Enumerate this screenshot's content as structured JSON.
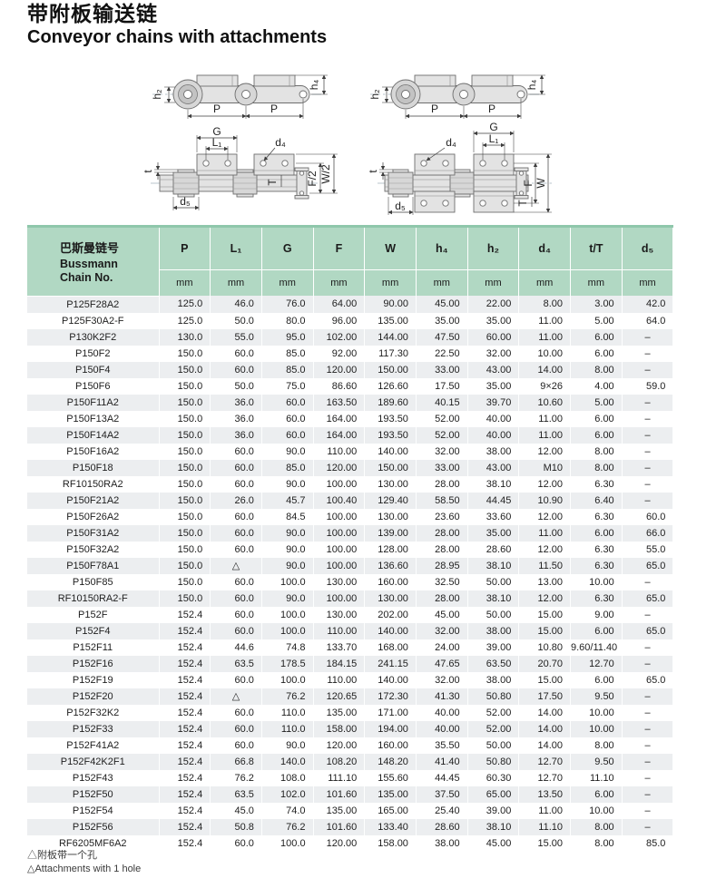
{
  "page": {
    "title_zh": "带附板输送链",
    "title_en": "Conveyor chains with attachments"
  },
  "colors": {
    "header_green": "#b1d8c3",
    "header_top_border": "#8fc7ab",
    "row_stripe_gray": "#eceef0"
  },
  "drawings": {
    "dims": {
      "P": "P",
      "G": "G",
      "T": "T",
      "t": "t",
      "h2": "h₂",
      "h4": "h₄",
      "L1": "L₁",
      "d4": "d₄",
      "d5": "d₅",
      "F": "F",
      "W": "W",
      "F2": "F/2",
      "W2": "W/2"
    }
  },
  "table": {
    "header": {
      "chain_zh": "巴斯曼链号",
      "chain_en1": "Bussmann",
      "chain_en2": "Chain No.",
      "columns": [
        "P",
        "L₁",
        "G",
        "F",
        "W",
        "h₄",
        "h₂",
        "d₄",
        "t/T",
        "d₅"
      ],
      "unit": "mm"
    },
    "rows": [
      [
        "P125F28A2",
        "125.0",
        "46.0",
        "76.0",
        "64.00",
        "90.00",
        "45.00",
        "22.00",
        "8.00",
        "3.00",
        "42.0"
      ],
      [
        "P125F30A2-F",
        "125.0",
        "50.0",
        "80.0",
        "96.00",
        "135.00",
        "35.00",
        "35.00",
        "11.00",
        "5.00",
        "64.0"
      ],
      [
        "P130K2F2",
        "130.0",
        "55.0",
        "95.0",
        "102.00",
        "144.00",
        "47.50",
        "60.00",
        "11.00",
        "6.00",
        "–"
      ],
      [
        "P150F2",
        "150.0",
        "60.0",
        "85.0",
        "92.00",
        "117.30",
        "22.50",
        "32.00",
        "10.00",
        "6.00",
        "–"
      ],
      [
        "P150F4",
        "150.0",
        "60.0",
        "85.0",
        "120.00",
        "150.00",
        "33.00",
        "43.00",
        "14.00",
        "8.00",
        "–"
      ],
      [
        "P150F6",
        "150.0",
        "50.0",
        "75.0",
        "86.60",
        "126.60",
        "17.50",
        "35.00",
        "9×26",
        "4.00",
        "59.0"
      ],
      [
        "P150F11A2",
        "150.0",
        "36.0",
        "60.0",
        "163.50",
        "189.60",
        "40.15",
        "39.70",
        "10.60",
        "5.00",
        "–"
      ],
      [
        "P150F13A2",
        "150.0",
        "36.0",
        "60.0",
        "164.00",
        "193.50",
        "52.00",
        "40.00",
        "11.00",
        "6.00",
        "–"
      ],
      [
        "P150F14A2",
        "150.0",
        "36.0",
        "60.0",
        "164.00",
        "193.50",
        "52.00",
        "40.00",
        "11.00",
        "6.00",
        "–"
      ],
      [
        "P150F16A2",
        "150.0",
        "60.0",
        "90.0",
        "110.00",
        "140.00",
        "32.00",
        "38.00",
        "12.00",
        "8.00",
        "–"
      ],
      [
        "P150F18",
        "150.0",
        "60.0",
        "85.0",
        "120.00",
        "150.00",
        "33.00",
        "43.00",
        "M10",
        "8.00",
        "–"
      ],
      [
        "RF10150RA2",
        "150.0",
        "60.0",
        "90.0",
        "100.00",
        "130.00",
        "28.00",
        "38.10",
        "12.00",
        "6.30",
        "–"
      ],
      [
        "P150F21A2",
        "150.0",
        "26.0",
        "45.7",
        "100.40",
        "129.40",
        "58.50",
        "44.45",
        "10.90",
        "6.40",
        "–"
      ],
      [
        "P150F26A2",
        "150.0",
        "60.0",
        "84.5",
        "100.00",
        "130.00",
        "23.60",
        "33.60",
        "12.00",
        "6.30",
        "60.0"
      ],
      [
        "P150F31A2",
        "150.0",
        "60.0",
        "90.0",
        "100.00",
        "139.00",
        "28.00",
        "35.00",
        "11.00",
        "6.00",
        "66.0"
      ],
      [
        "P150F32A2",
        "150.0",
        "60.0",
        "90.0",
        "100.00",
        "128.00",
        "28.00",
        "28.60",
        "12.00",
        "6.30",
        "55.0"
      ],
      [
        "P150F78A1",
        "150.0",
        "△",
        "90.0",
        "100.00",
        "136.60",
        "28.95",
        "38.10",
        "11.50",
        "6.30",
        "65.0"
      ],
      [
        "P150F85",
        "150.0",
        "60.0",
        "100.0",
        "130.00",
        "160.00",
        "32.50",
        "50.00",
        "13.00",
        "10.00",
        "–"
      ],
      [
        "RF10150RA2-F",
        "150.0",
        "60.0",
        "90.0",
        "100.00",
        "130.00",
        "28.00",
        "38.10",
        "12.00",
        "6.30",
        "65.0"
      ],
      [
        "P152F",
        "152.4",
        "60.0",
        "100.0",
        "130.00",
        "202.00",
        "45.00",
        "50.00",
        "15.00",
        "9.00",
        "–"
      ],
      [
        "P152F4",
        "152.4",
        "60.0",
        "100.0",
        "110.00",
        "140.00",
        "32.00",
        "38.00",
        "15.00",
        "6.00",
        "65.0"
      ],
      [
        "P152F11",
        "152.4",
        "44.6",
        "74.8",
        "133.70",
        "168.00",
        "24.00",
        "39.00",
        "10.80",
        "9.60/11.40",
        "–"
      ],
      [
        "P152F16",
        "152.4",
        "63.5",
        "178.5",
        "184.15",
        "241.15",
        "47.65",
        "63.50",
        "20.70",
        "12.70",
        "–"
      ],
      [
        "P152F19",
        "152.4",
        "60.0",
        "100.0",
        "110.00",
        "140.00",
        "32.00",
        "38.00",
        "15.00",
        "6.00",
        "65.0"
      ],
      [
        "P152F20",
        "152.4",
        "△",
        "76.2",
        "120.65",
        "172.30",
        "41.30",
        "50.80",
        "17.50",
        "9.50",
        "–"
      ],
      [
        "P152F32K2",
        "152.4",
        "60.0",
        "110.0",
        "135.00",
        "171.00",
        "40.00",
        "52.00",
        "14.00",
        "10.00",
        "–"
      ],
      [
        "P152F33",
        "152.4",
        "60.0",
        "110.0",
        "158.00",
        "194.00",
        "40.00",
        "52.00",
        "14.00",
        "10.00",
        "–"
      ],
      [
        "P152F41A2",
        "152.4",
        "60.0",
        "90.0",
        "120.00",
        "160.00",
        "35.50",
        "50.00",
        "14.00",
        "8.00",
        "–"
      ],
      [
        "P152F42K2F1",
        "152.4",
        "66.8",
        "140.0",
        "108.20",
        "148.20",
        "41.40",
        "50.80",
        "12.70",
        "9.50",
        "–"
      ],
      [
        "P152F43",
        "152.4",
        "76.2",
        "108.0",
        "111.10",
        "155.60",
        "44.45",
        "60.30",
        "12.70",
        "11.10",
        "–"
      ],
      [
        "P152F50",
        "152.4",
        "63.5",
        "102.0",
        "101.60",
        "135.00",
        "37.50",
        "65.00",
        "13.50",
        "6.00",
        "–"
      ],
      [
        "P152F54",
        "152.4",
        "45.0",
        "74.0",
        "135.00",
        "165.00",
        "25.40",
        "39.00",
        "11.00",
        "10.00",
        "–"
      ],
      [
        "P152F56",
        "152.4",
        "50.8",
        "76.2",
        "101.60",
        "133.40",
        "28.60",
        "38.10",
        "11.10",
        "8.00",
        "–"
      ],
      [
        "RF6205MF6A2",
        "152.4",
        "60.0",
        "100.0",
        "120.00",
        "158.00",
        "38.00",
        "45.00",
        "15.00",
        "8.00",
        "85.0"
      ]
    ],
    "footnotes": [
      "△附板带一个孔",
      "△Attachments with 1 hole"
    ]
  }
}
